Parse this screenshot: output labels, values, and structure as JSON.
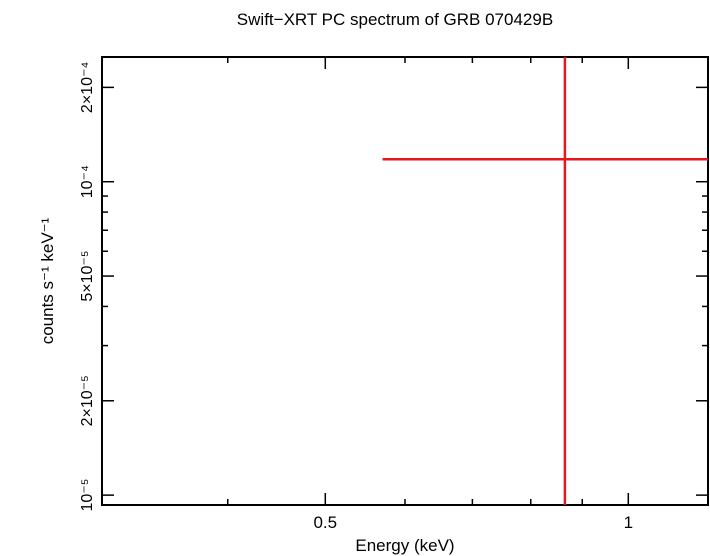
{
  "chart_data": {
    "type": "scatter",
    "title": "Swift−XRT PC spectrum of GRB 070429B",
    "xlabel": "Energy (keV)",
    "ylabel": "counts s⁻¹ keV⁻¹",
    "x_scale": "log",
    "y_scale": "log",
    "xlim": [
      0.3,
      1.2
    ],
    "ylim": [
      9.3e-06,
      0.00025
    ],
    "x_ticks": [
      {
        "value": 0.5,
        "label": "0.5"
      },
      {
        "value": 1,
        "label": "1"
      }
    ],
    "y_ticks": [
      {
        "value": 1e-05,
        "label": "10⁻⁵"
      },
      {
        "value": 2e-05,
        "label": "2×10⁻⁵"
      },
      {
        "value": 5e-05,
        "label": "5×10⁻⁵"
      },
      {
        "value": 0.0001,
        "label": "10⁻⁴"
      },
      {
        "value": 0.0002,
        "label": "2×10⁻⁴"
      }
    ],
    "grid": false,
    "series": [
      {
        "color": "#e8161b",
        "points": [
          {
            "x": 0.865,
            "y": 0.000118,
            "xerr": [
              0.57,
              1.2
            ],
            "yerr": [
              9.3e-06,
              0.00025
            ]
          }
        ]
      }
    ]
  }
}
